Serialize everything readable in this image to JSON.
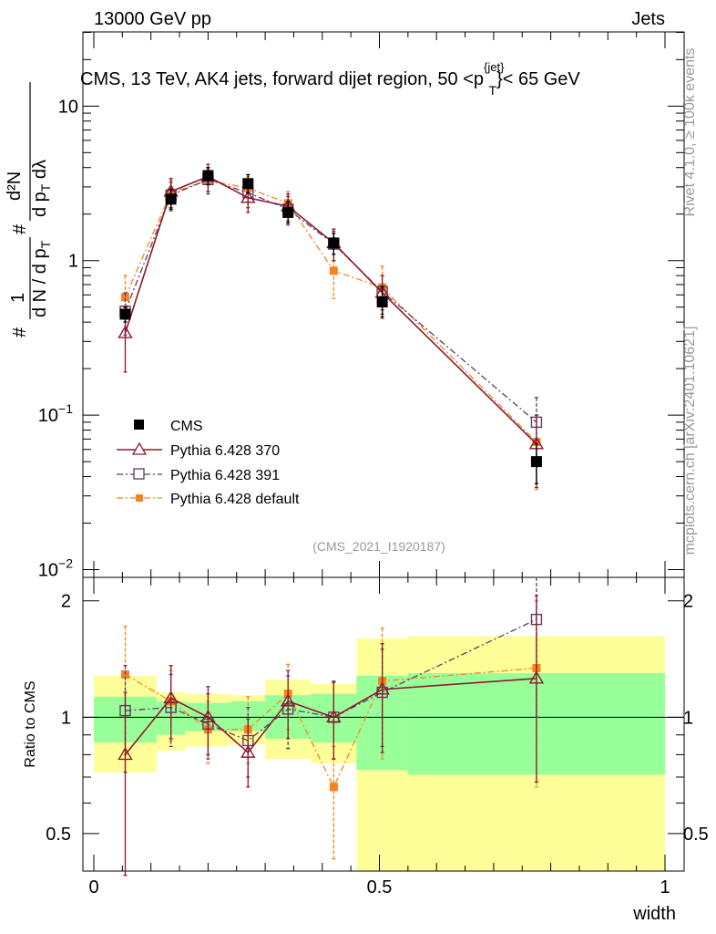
{
  "header": {
    "left": "13000 GeV pp",
    "right": "Jets"
  },
  "title": "CMS, 13 TeV, AK4 jets, forward dijet region, 50 <p",
  "title_sup": "{jet}",
  "title_sub": "T",
  "title_tail": "}< 65 GeV",
  "ylabel_main": {
    "hash1": "#",
    "one": "1",
    "dN": "d N / d p",
    "t1": "T",
    "hash2": "#",
    "d2N": "d²N",
    "dpT": "d p",
    "t2": "T",
    "dlam": " dλ"
  },
  "ylabel_ratio": "Ratio to CMS",
  "xlabel": "width",
  "side_right_top": "Rivet 4.1.0, ≥ 100k events",
  "side_right_bottom": "mcplots.cern.ch [arXiv:2401.10621]",
  "analysis_id": "(CMS_2021_I1920187)",
  "ticks": {
    "main_y": [
      {
        "value": 10,
        "base": "10",
        "exp": ""
      },
      {
        "value": 1,
        "base": "1",
        "exp": ""
      },
      {
        "value": 0.1,
        "base": "10",
        "exp": "−1"
      },
      {
        "value": 0.01,
        "base": "10",
        "exp": "−2"
      }
    ],
    "ratio_y": [
      {
        "value": 2,
        "label": "2"
      },
      {
        "value": 1,
        "label": "1"
      },
      {
        "value": 0.5,
        "label": "0.5"
      }
    ],
    "x": [
      {
        "value": 0,
        "label": "0"
      },
      {
        "value": 0.5,
        "label": "0.5"
      },
      {
        "value": 1,
        "label": "1"
      }
    ]
  },
  "colors": {
    "cms": "#000000",
    "p370": "#8b1a2e",
    "p391": "#5e3d63",
    "pdef": "#f58420",
    "band_inner": "#99ff99",
    "band_outer": "#ffff99"
  },
  "chart_data": {
    "type": "scatter",
    "xlabel": "width",
    "ylabel": "1/dN/dpT dN/dpT dλ",
    "xlim": [
      0,
      1
    ],
    "ylim_main": [
      0.01,
      40
    ],
    "ylim_ratio": [
      0.4,
      2.3
    ],
    "yscale_main": "log",
    "yscale_ratio": "log",
    "x": [
      0.055,
      0.135,
      0.2,
      0.27,
      0.34,
      0.42,
      0.505,
      0.775
    ],
    "x_edges": [
      0,
      0.11,
      0.16,
      0.24,
      0.3,
      0.38,
      0.46,
      0.55,
      1.0
    ],
    "legend": [
      "CMS",
      "Pythia 6.428 370",
      "Pythia 6.428 391",
      "Pythia 6.428 default"
    ],
    "series": [
      {
        "name": "CMS",
        "key": "cms",
        "marker": "filled-square",
        "line": "none",
        "values": [
          0.45,
          2.5,
          3.55,
          3.15,
          2.05,
          1.3,
          0.54,
          0.05
        ],
        "err_up": [
          0.5,
          2.9,
          4.0,
          3.6,
          2.4,
          1.5,
          0.68,
          0.065
        ],
        "err_dn": [
          0.4,
          2.15,
          3.1,
          2.75,
          1.75,
          1.1,
          0.43,
          0.036
        ]
      },
      {
        "name": "Pythia 6.428 370",
        "key": "p370",
        "marker": "open-triangle",
        "line": "solid",
        "values": [
          0.34,
          2.8,
          3.5,
          2.55,
          2.25,
          1.3,
          0.62,
          0.065
        ],
        "err_up": [
          0.5,
          3.4,
          4.2,
          3.1,
          2.7,
          1.6,
          0.8,
          0.1
        ],
        "err_dn": [
          0.19,
          2.2,
          2.8,
          2.05,
          1.8,
          1.0,
          0.45,
          0.034
        ]
      },
      {
        "name": "Pythia 6.428 391",
        "key": "p391",
        "marker": "open-square",
        "line": "dashdot",
        "values": [
          0.47,
          2.65,
          3.35,
          2.75,
          2.15,
          1.28,
          0.63,
          0.09
        ],
        "err_up": [
          0.62,
          3.2,
          4.0,
          3.3,
          2.6,
          1.55,
          0.8,
          0.13
        ],
        "err_dn": [
          0.33,
          2.1,
          2.7,
          2.2,
          1.7,
          1.0,
          0.48,
          0.05
        ]
      },
      {
        "name": "Pythia 6.428 default",
        "key": "pdef",
        "marker": "small-filled-square",
        "line": "dashdot",
        "values": [
          0.58,
          2.75,
          3.3,
          2.95,
          2.35,
          0.86,
          0.67,
          0.067
        ],
        "err_up": [
          0.8,
          3.3,
          3.9,
          3.5,
          2.8,
          1.1,
          0.92,
          0.1
        ],
        "err_dn": [
          0.36,
          2.2,
          2.7,
          2.4,
          1.9,
          0.57,
          0.42,
          0.033
        ]
      }
    ],
    "ratio": [
      {
        "key": "p370",
        "values": [
          0.8,
          1.12,
          1.0,
          0.81,
          1.1,
          1.0,
          1.18,
          1.26
        ],
        "err_up": [
          1.16,
          1.36,
          1.2,
          0.99,
          1.32,
          1.23,
          1.55,
          2.06
        ],
        "err_dn": [
          0.39,
          0.88,
          0.8,
          0.66,
          0.88,
          0.78,
          0.81,
          0.68
        ]
      },
      {
        "key": "p391",
        "values": [
          1.04,
          1.06,
          0.96,
          0.87,
          1.05,
          1.0,
          1.16,
          1.79
        ],
        "err_up": [
          1.36,
          1.29,
          1.15,
          1.06,
          1.28,
          1.24,
          1.5,
          2.55
        ],
        "err_dn": [
          0.72,
          0.84,
          0.78,
          0.7,
          0.83,
          0.78,
          0.84,
          1.0
        ]
      },
      {
        "key": "pdef",
        "values": [
          1.29,
          1.1,
          0.93,
          0.93,
          1.15,
          0.66,
          1.24,
          1.34
        ],
        "err_up": [
          1.72,
          1.32,
          1.1,
          1.13,
          1.37,
          0.84,
          1.7,
          2.0
        ],
        "err_dn": [
          0.8,
          0.87,
          0.76,
          0.76,
          0.93,
          0.43,
          0.78,
          0.66
        ]
      }
    ],
    "ratio_band": {
      "x_edges": [
        0,
        0.11,
        0.16,
        0.24,
        0.3,
        0.38,
        0.46,
        0.55,
        1.0
      ],
      "inner_lo": [
        0.86,
        0.9,
        0.92,
        0.92,
        0.88,
        0.86,
        0.73,
        0.71
      ],
      "inner_hi": [
        1.13,
        1.1,
        1.09,
        1.1,
        1.14,
        1.15,
        1.28,
        1.3
      ],
      "outer_lo": [
        0.72,
        0.82,
        0.84,
        0.85,
        0.78,
        0.76,
        0.39,
        0.39
      ],
      "outer_hi": [
        1.28,
        1.16,
        1.15,
        1.14,
        1.25,
        1.22,
        1.6,
        1.62
      ]
    }
  }
}
